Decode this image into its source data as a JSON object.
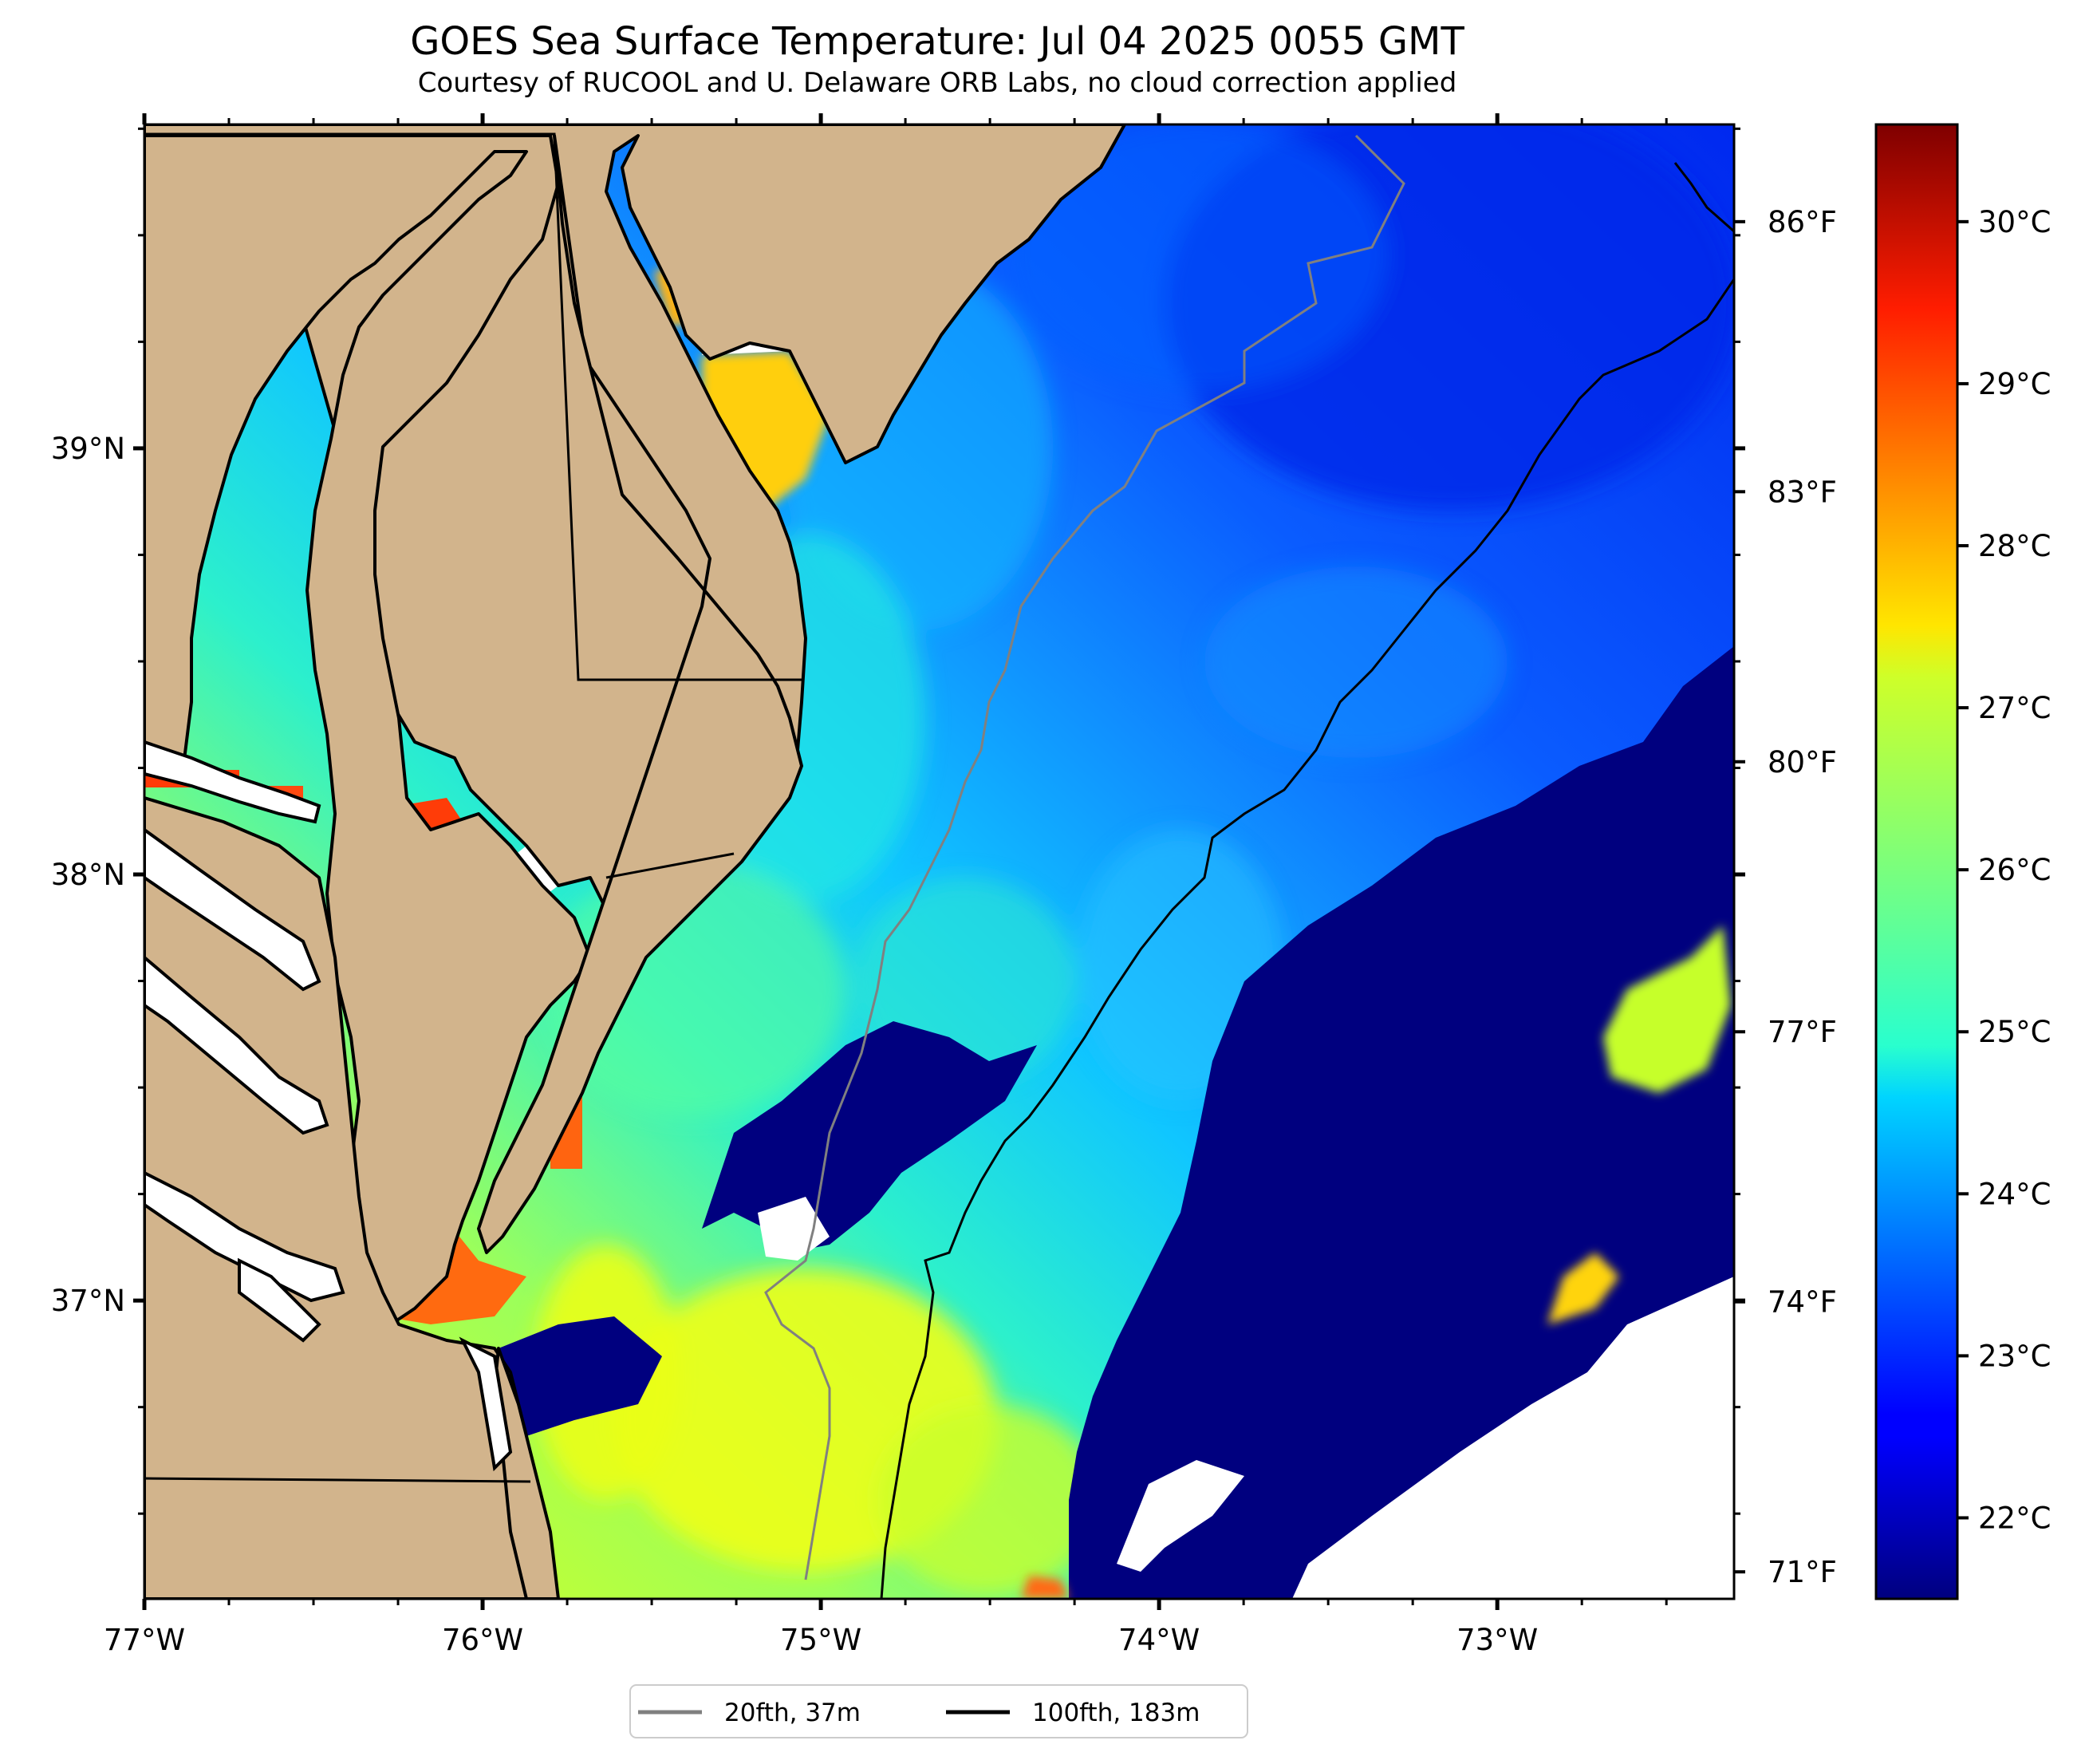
{
  "title": "GOES Sea Surface Temperature: Jul 04 2025 0055 GMT",
  "subtitle": "Courtesy of RUCOOL and U. Delaware ORB Labs, no cloud correction applied",
  "map": {
    "lon_range": [
      -77.0,
      -72.3
    ],
    "lat_range": [
      36.3,
      39.76
    ],
    "lon_ticks": [
      {
        "value": -77,
        "label": "77°W"
      },
      {
        "value": -76,
        "label": "76°W"
      },
      {
        "value": -75,
        "label": "75°W"
      },
      {
        "value": -74,
        "label": "74°W"
      },
      {
        "value": -73,
        "label": "73°W"
      }
    ],
    "lat_ticks": [
      {
        "value": 39,
        "label": "39°N"
      },
      {
        "value": 38,
        "label": "38°N"
      },
      {
        "value": 37,
        "label": "37°N"
      }
    ],
    "fahrenheit_ticks": [
      {
        "value": 86,
        "label": "86°F"
      },
      {
        "value": 83,
        "label": "83°F"
      },
      {
        "value": 80,
        "label": "80°F"
      },
      {
        "value": 77,
        "label": "77°F"
      },
      {
        "value": 74,
        "label": "74°F"
      },
      {
        "value": 71,
        "label": "71°F"
      }
    ],
    "land_color": "#d2b48c",
    "cloud_color": "#00007f"
  },
  "colorbar": {
    "range_c": [
      21.5,
      30.6
    ],
    "colormap": "jet",
    "ticks": [
      {
        "value": 30,
        "label": "30°C"
      },
      {
        "value": 29,
        "label": "29°C"
      },
      {
        "value": 28,
        "label": "28°C"
      },
      {
        "value": 27,
        "label": "27°C"
      },
      {
        "value": 26,
        "label": "26°C"
      },
      {
        "value": 25,
        "label": "25°C"
      },
      {
        "value": 24,
        "label": "24°C"
      },
      {
        "value": 23,
        "label": "23°C"
      },
      {
        "value": 22,
        "label": "22°C"
      }
    ]
  },
  "legend": {
    "items": [
      {
        "label": "20fth, 37m",
        "color": "#808080"
      },
      {
        "label": "100fth, 183m",
        "color": "#000000"
      }
    ]
  }
}
